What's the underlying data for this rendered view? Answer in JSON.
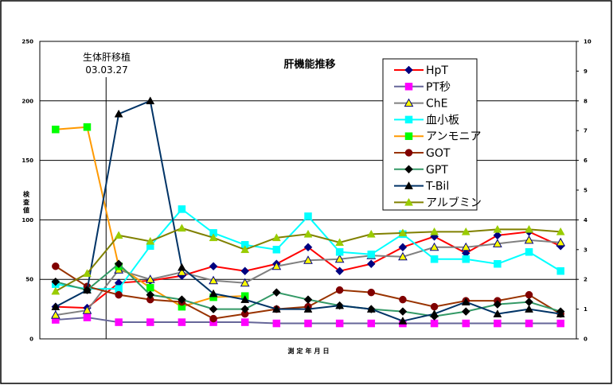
{
  "chart_data": {
    "type": "line",
    "title": "肝機能推移",
    "xlabel": "測定年月日",
    "ylabel": "検査値",
    "ylim": [
      0,
      250
    ],
    "y_ticks": [
      "0",
      "50",
      "100",
      "150",
      "200",
      "250"
    ],
    "y2lim": [
      0,
      10
    ],
    "y2_ticks": [
      "0",
      "1",
      "2",
      "3",
      "4",
      "5",
      "6",
      "7",
      "8",
      "9",
      "10"
    ],
    "grid": true,
    "legend": "top-right",
    "annotation": {
      "line1": "生体肝移植",
      "line2": "03.03.27",
      "at_index": 1.6
    },
    "series": [
      {
        "name": "HpT",
        "line_color": "#ff0000",
        "marker": "diamond",
        "marker_color": "#000080",
        "values": [
          27,
          26,
          47,
          49,
          53,
          61,
          57,
          63,
          77,
          57,
          63,
          77,
          86,
          72,
          87,
          90,
          78
        ]
      },
      {
        "name": "PT秒",
        "line_color": "#666699",
        "marker": "square",
        "marker_color": "#ff00ff",
        "values": [
          16,
          18,
          14,
          14,
          14,
          14,
          14,
          13,
          13,
          13,
          13,
          13,
          13,
          13,
          13,
          13,
          13
        ]
      },
      {
        "name": "ChE",
        "line_color": "#808080",
        "marker": "triangle",
        "marker_color": "#ffff00",
        "marker_stroke": "#000080",
        "values": [
          20,
          24,
          58,
          50,
          56,
          49,
          47,
          61,
          66,
          67,
          70,
          69,
          77,
          77,
          80,
          83,
          81
        ]
      },
      {
        "name": "血小板",
        "line_color": "#00ffff",
        "marker": "square",
        "marker_color": "#00ffff",
        "values": [
          46,
          42,
          42,
          78,
          109,
          89,
          79,
          75,
          103,
          73,
          71,
          88,
          67,
          67,
          63,
          73,
          57
        ]
      },
      {
        "name": "アンモニア",
        "line_color": "#ff9900",
        "marker": "square",
        "marker_color": "#00ff00",
        "values": [
          176,
          178,
          61,
          43,
          27,
          35,
          36,
          null,
          null,
          null,
          null,
          null,
          null,
          null,
          null,
          null,
          null
        ]
      },
      {
        "name": "GOT",
        "line_color": "#993300",
        "marker": "circle",
        "marker_color": "#800000",
        "values": [
          61,
          44,
          37,
          33,
          31,
          17,
          21,
          25,
          27,
          41,
          39,
          33,
          27,
          32,
          32,
          37,
          21
        ]
      },
      {
        "name": "GPT",
        "line_color": "#339966",
        "marker": "diamond",
        "marker_color": "#000000",
        "values": [
          48,
          41,
          63,
          37,
          33,
          25,
          25,
          39,
          33,
          28,
          25,
          23,
          19,
          23,
          29,
          31,
          23
        ]
      },
      {
        "name": "T-Bil",
        "line_color": "#003366",
        "marker": "triangle",
        "marker_color": "#000000",
        "values": [
          27,
          41,
          189,
          200,
          60,
          38,
          33,
          25,
          25,
          28,
          25,
          15,
          21,
          31,
          21,
          25,
          21
        ]
      },
      {
        "name": "アルブミン",
        "line_color": "#808000",
        "marker": "triangle",
        "marker_color": "#99cc00",
        "values": [
          40,
          55,
          87,
          82,
          93,
          85,
          75,
          85,
          88,
          81,
          88,
          89,
          90,
          90,
          92,
          92,
          90
        ]
      }
    ]
  }
}
